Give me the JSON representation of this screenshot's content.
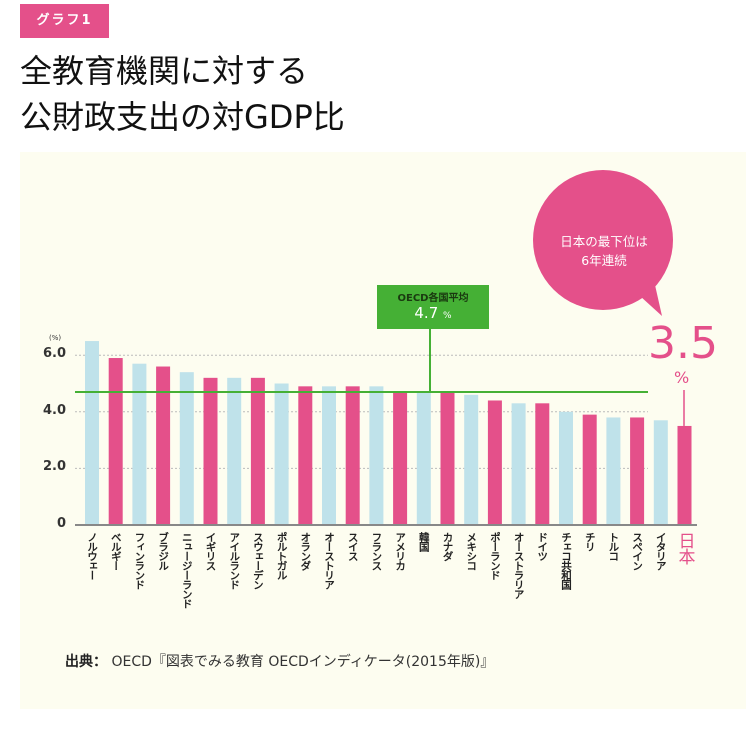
{
  "tag": "グラフ1",
  "title": [
    "全教育機関に対する",
    "公財政支出の対GDP比"
  ],
  "source_label": "出典：",
  "source_text": "OECD『図表でみる教育 OECDインディケータ(2015年版)』",
  "bubble": [
    "日本の最下位は",
    "6年連続"
  ],
  "average": {
    "label": "OECD各国平均",
    "value": "4.7",
    "unit": "%"
  },
  "japan_callout": {
    "value": "3.5",
    "unit": "%"
  },
  "colors": {
    "pink": "#e4508a",
    "blue": "#bfe2ea",
    "green": "#45b035",
    "panel": "#fdfdf0"
  },
  "chart_data": {
    "type": "bar",
    "title": "全教育機関に対する公財政支出の対GDP比",
    "ylabel": "(%)",
    "ylim": [
      0,
      6.5
    ],
    "yticks": [
      "0",
      "2.0",
      "4.0",
      "6.0"
    ],
    "ytick_values": [
      0,
      2,
      4,
      6
    ],
    "grid": true,
    "categories": [
      "ノルウェー",
      "ベルギー",
      "フィンランド",
      "ブラジル",
      "ニュージーランド",
      "イギリス",
      "アイルランド",
      "スウェーデン",
      "ポルトガル",
      "オランダ",
      "オーストリア",
      "スイス",
      "フランス",
      "アメリカ",
      "韓国",
      "カナダ",
      "メキシコ",
      "ポーランド",
      "オーストラリア",
      "ドイツ",
      "チェコ共和国",
      "チリ",
      "トルコ",
      "スペイン",
      "イタリア",
      "日本"
    ],
    "values": [
      6.5,
      5.9,
      5.7,
      5.6,
      5.4,
      5.2,
      5.2,
      5.2,
      5.0,
      4.9,
      4.9,
      4.9,
      4.9,
      4.7,
      4.7,
      4.7,
      4.6,
      4.4,
      4.3,
      4.3,
      4.0,
      3.9,
      3.8,
      3.8,
      3.7,
      3.5
    ],
    "reference_line": {
      "label": "OECD各国平均",
      "value": 4.7
    }
  }
}
